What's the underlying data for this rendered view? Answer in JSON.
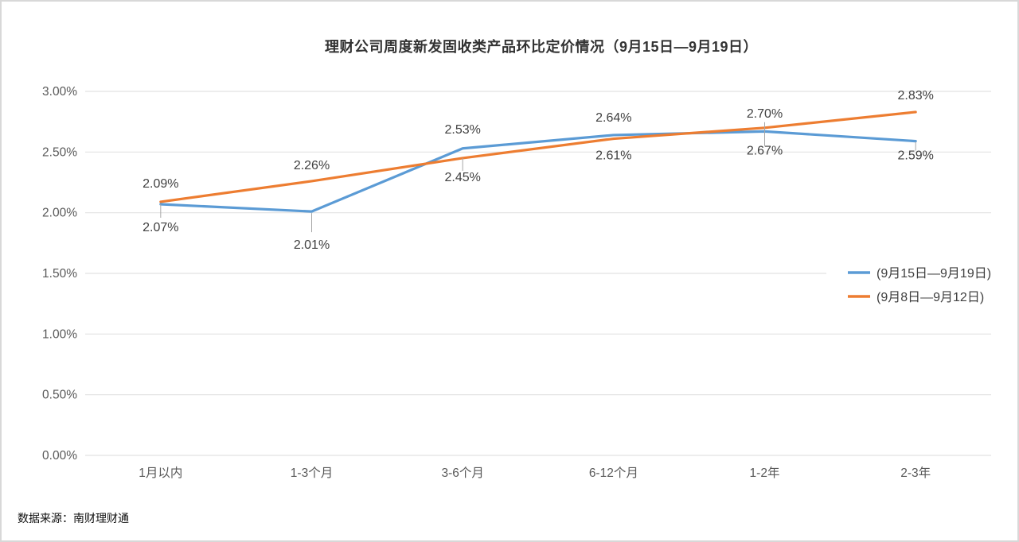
{
  "page": {
    "title": "理财公司周度新发固收类产品环比定价情况（9月15日—9月19日）",
    "source_note": "数据来源：南财理财通"
  },
  "colors": {
    "series_blue": "#5B9BD5",
    "series_orange": "#ED7D31",
    "grid_line": "#E2E2E2",
    "axis_text": "#595959",
    "data_label_text": "#404040",
    "callout_line": "#A6A6A6",
    "legend_text": "#404040",
    "page_border": "#D8D8D8",
    "title_text": "#333333"
  },
  "chart_data": {
    "type": "line",
    "title": "理财公司周度新发固收类产品环比定价情况（9月15日—9月19日）",
    "categories": [
      "1月以内",
      "1-3个月",
      "3-6个月",
      "6-12个月",
      "1-2年",
      "2-3年"
    ],
    "series": [
      {
        "name": "(9月15日—9月19日)",
        "color": "#5B9BD5",
        "values": [
          2.07,
          2.01,
          2.53,
          2.64,
          2.67,
          2.59
        ],
        "point_labels": [
          "2.07%",
          "2.01%",
          "2.53%",
          "2.64%",
          "2.67%",
          "2.59%"
        ],
        "label_dy": [
          34,
          47,
          -19,
          -17,
          29,
          23
        ]
      },
      {
        "name": "(9月8日—9月12日)",
        "color": "#ED7D31",
        "values": [
          2.09,
          2.26,
          2.45,
          2.61,
          2.7,
          2.83
        ],
        "point_labels": [
          "2.09%",
          "2.26%",
          "2.45%",
          "2.61%",
          "2.70%",
          "2.83%"
        ],
        "label_dy": [
          -18,
          -15,
          29,
          26,
          -13,
          -16
        ]
      }
    ],
    "y_ticks": [
      {
        "value": 3.0,
        "label": "3.00%"
      },
      {
        "value": 2.5,
        "label": "2.50%"
      },
      {
        "value": 2.0,
        "label": "2.00%"
      },
      {
        "value": 1.5,
        "label": "1.50%"
      },
      {
        "value": 1.0,
        "label": "1.00%"
      },
      {
        "value": 0.5,
        "label": "0.50%"
      },
      {
        "value": 0.0,
        "label": "0.00%"
      }
    ],
    "ylim": [
      0,
      3
    ],
    "grid": true,
    "legend_position": "right-middle",
    "callouts": [
      {
        "series": 0,
        "point": 0,
        "from_dy": 0,
        "to_dy": 17
      },
      {
        "series": 0,
        "point": 1,
        "from_dy": 2,
        "to_dy": 26
      },
      {
        "series": 1,
        "point": 2,
        "from_dy": 0,
        "to_dy": 16
      },
      {
        "series": 1,
        "point": 4,
        "from_dy": -7,
        "to_dy": 23
      },
      {
        "series": 0,
        "point": 5,
        "from_dy": 1,
        "to_dy": 12
      }
    ]
  }
}
